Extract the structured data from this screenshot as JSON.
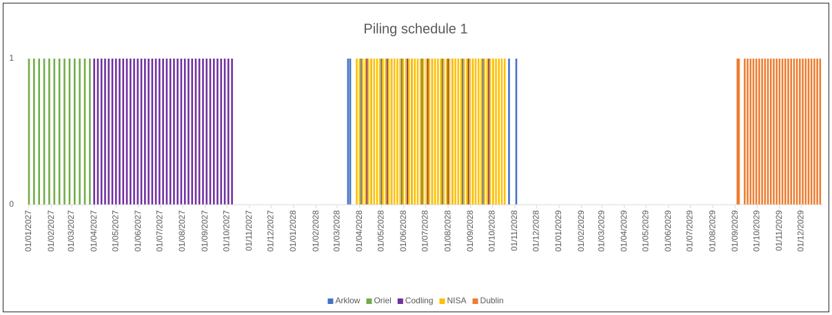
{
  "chart_data": {
    "type": "bar",
    "title": "Piling schedule 1",
    "xlim": [
      "01/01/2027",
      "31/12/2029"
    ],
    "xticks": [
      "01/01/2027",
      "01/02/2027",
      "01/03/2027",
      "01/04/2027",
      "01/05/2027",
      "01/06/2027",
      "01/07/2027",
      "01/08/2027",
      "01/09/2027",
      "01/10/2027",
      "01/11/2027",
      "01/12/2027",
      "01/01/2028",
      "01/02/2028",
      "01/03/2028",
      "01/04/2028",
      "01/05/2028",
      "01/06/2028",
      "01/07/2028",
      "01/08/2028",
      "01/09/2028",
      "01/10/2028",
      "01/11/2028",
      "01/12/2028",
      "01/01/2029",
      "01/02/2029",
      "01/03/2029",
      "01/04/2029",
      "01/05/2029",
      "01/06/2029",
      "01/07/2029",
      "01/08/2029",
      "01/09/2029",
      "01/10/2029",
      "01/11/2029",
      "01/12/2029"
    ],
    "ylim": [
      0,
      1
    ],
    "yticks": [
      0,
      1
    ],
    "grid": false,
    "legend": "bottom",
    "series": [
      {
        "name": "Arklow",
        "color": "#4472c4",
        "x": [
          "16/03/2028",
          "19/03/2028",
          "03/04/2028",
          "17/04/2028",
          "01/05/2028",
          "15/05/2028",
          "29/05/2028",
          "12/06/2028",
          "26/06/2028",
          "10/07/2028",
          "24/07/2028",
          "07/08/2028",
          "21/08/2028",
          "04/09/2028",
          "18/09/2028",
          "02/10/2028",
          "24/10/2028",
          "03/11/2028"
        ],
        "values": [
          1,
          1,
          1,
          1,
          1,
          1,
          1,
          1,
          1,
          1,
          1,
          1,
          1,
          1,
          1,
          1,
          1,
          1
        ]
      },
      {
        "name": "Oriel",
        "color": "#70ad47",
        "x": [
          "01/01/2027",
          "08/01/2027",
          "15/01/2027",
          "22/01/2027",
          "29/01/2027",
          "05/02/2027",
          "12/02/2027",
          "19/02/2027",
          "26/02/2027",
          "05/03/2027",
          "12/03/2027",
          "19/03/2027",
          "26/03/2027"
        ],
        "values": [
          1,
          1,
          1,
          1,
          1,
          1,
          1,
          1,
          1,
          1,
          1,
          1,
          1
        ]
      },
      {
        "name": "Codling",
        "color": "#7030a0",
        "x": [
          "01/04/2027",
          "06/04/2027",
          "11/04/2027",
          "16/04/2027",
          "21/04/2027",
          "26/04/2027",
          "01/05/2027",
          "06/05/2027",
          "11/05/2027",
          "16/05/2027",
          "21/05/2027",
          "26/05/2027",
          "31/05/2027",
          "05/06/2027",
          "10/06/2027",
          "15/06/2027",
          "20/06/2027",
          "25/06/2027",
          "30/06/2027",
          "05/07/2027",
          "10/07/2027",
          "15/07/2027",
          "20/07/2027",
          "25/07/2027",
          "30/07/2027",
          "04/08/2027",
          "09/08/2027",
          "14/08/2027",
          "19/08/2027",
          "24/08/2027",
          "29/08/2027",
          "03/09/2027",
          "08/09/2027",
          "13/09/2027",
          "18/09/2027",
          "23/09/2027",
          "28/09/2027",
          "03/10/2027",
          "08/10/2027",
          "11/04/2028",
          "09/05/2028",
          "06/06/2028",
          "04/07/2028",
          "01/08/2028",
          "29/08/2028",
          "26/09/2028"
        ],
        "values": [
          1,
          1,
          1,
          1,
          1,
          1,
          1,
          1,
          1,
          1,
          1,
          1,
          1,
          1,
          1,
          1,
          1,
          1,
          1,
          1,
          1,
          1,
          1,
          1,
          1,
          1,
          1,
          1,
          1,
          1,
          1,
          1,
          1,
          1,
          1,
          1,
          1,
          1,
          1,
          1,
          1,
          1,
          1,
          1,
          1,
          1
        ]
      },
      {
        "name": "NISA",
        "color": "#ffc000",
        "x": [
          "28/03/2028",
          "01/04/2028",
          "05/04/2028",
          "09/04/2028",
          "13/04/2028",
          "17/04/2028",
          "21/04/2028",
          "25/04/2028",
          "29/04/2028",
          "03/05/2028",
          "07/05/2028",
          "11/05/2028",
          "15/05/2028",
          "19/05/2028",
          "23/05/2028",
          "27/05/2028",
          "31/05/2028",
          "04/06/2028",
          "08/06/2028",
          "12/06/2028",
          "16/06/2028",
          "20/06/2028",
          "24/06/2028",
          "28/06/2028",
          "02/07/2028",
          "06/07/2028",
          "10/07/2028",
          "14/07/2028",
          "18/07/2028",
          "22/07/2028",
          "26/07/2028",
          "30/07/2028",
          "03/08/2028",
          "07/08/2028",
          "11/08/2028",
          "15/08/2028",
          "19/08/2028",
          "23/08/2028",
          "27/08/2028",
          "31/08/2028",
          "04/09/2028",
          "08/09/2028",
          "12/09/2028",
          "16/09/2028",
          "20/09/2028",
          "24/09/2028",
          "28/09/2028",
          "02/10/2028",
          "06/10/2028",
          "10/10/2028",
          "14/10/2028",
          "18/10/2028"
        ],
        "values": [
          1,
          1,
          1,
          1,
          1,
          1,
          1,
          1,
          1,
          1,
          1,
          1,
          1,
          1,
          1,
          1,
          1,
          1,
          1,
          1,
          1,
          1,
          1,
          1,
          1,
          1,
          1,
          1,
          1,
          1,
          1,
          1,
          1,
          1,
          1,
          1,
          1,
          1,
          1,
          1,
          1,
          1,
          1,
          1,
          1,
          1,
          1,
          1,
          1,
          1,
          1,
          1
        ]
      },
      {
        "name": "Dublin",
        "color": "#ed7d31",
        "x": [
          "04/09/2029",
          "06/09/2029",
          "14/09/2029",
          "18/09/2029",
          "22/09/2029",
          "26/09/2029",
          "30/09/2029",
          "04/10/2029",
          "08/10/2029",
          "12/10/2029",
          "16/10/2029",
          "20/10/2029",
          "24/10/2029",
          "28/10/2029",
          "01/11/2029",
          "05/11/2029",
          "09/11/2029",
          "13/11/2029",
          "17/11/2029",
          "21/11/2029",
          "25/11/2029",
          "29/11/2029",
          "03/12/2029",
          "07/12/2029",
          "11/12/2029",
          "15/12/2029",
          "19/12/2029",
          "23/12/2029",
          "27/12/2029"
        ],
        "values": [
          1,
          1,
          1,
          1,
          1,
          1,
          1,
          1,
          1,
          1,
          1,
          1,
          1,
          1,
          1,
          1,
          1,
          1,
          1,
          1,
          1,
          1,
          1,
          1,
          1,
          1,
          1,
          1,
          1
        ]
      }
    ]
  }
}
